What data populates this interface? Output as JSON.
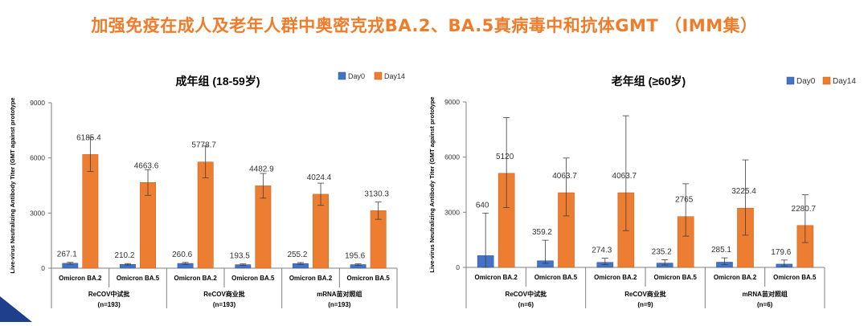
{
  "title": "加强免疫在成人及老年人群中奥密克戎BA.2、BA.5真病毒中和抗体GMT （IMM集）",
  "colors": {
    "day0": "#4472C4",
    "day14": "#ED7D31",
    "title": "#F07C2A"
  },
  "chart_data": [
    {
      "type": "bar",
      "title": "成年组 (18-59岁)",
      "ylabel": "Live-virus Neutralizing Antibody Titer (GMT against prototype",
      "ylim": [
        0,
        9000
      ],
      "yticks": [
        0,
        3000,
        6000,
        9000
      ],
      "legend_position": "top-right",
      "series_names": [
        "Day0",
        "Day14"
      ],
      "groups": [
        {
          "name": "ReCOV中试批",
          "n": "(n=193)",
          "categories": [
            "Omicron BA.2",
            "Omicron BA.5"
          ],
          "day0": [
            267.1,
            210.2
          ],
          "day14": [
            6185.4,
            4663.6
          ]
        },
        {
          "name": "ReCOV商业批",
          "n": "(n=193)",
          "categories": [
            "Omicron BA.2",
            "Omicron BA.5"
          ],
          "day0": [
            260.6,
            193.5
          ],
          "day14": [
            5778.7,
            4482.9
          ]
        },
        {
          "name": "mRNA苗对照组",
          "n": "(n=193)",
          "categories": [
            "Omicron BA.2",
            "Omicron BA.5"
          ],
          "day0": [
            255.2,
            195.6
          ],
          "day14": [
            4024.4,
            3130.3
          ]
        }
      ],
      "day0_labels": [
        "267.1",
        "210.2",
        "260.6",
        "193.5",
        "255.2",
        "195.6"
      ],
      "day14_labels": [
        "6185.4",
        "4663.6",
        "5778.7",
        "4482.9",
        "4024.4",
        "3130.3"
      ]
    },
    {
      "type": "bar",
      "title": "老年组 (≥60岁)",
      "ylabel": "Live-virus Neutralizing Antibody Titer (GMT against prototype",
      "ylim": [
        0,
        9000
      ],
      "yticks": [
        0,
        3000,
        6000,
        9000
      ],
      "legend_position": "top-right",
      "series_names": [
        "Day0",
        "Day14"
      ],
      "groups": [
        {
          "name": "ReCOV中试批",
          "n": "(n=6)",
          "categories": [
            "Omicron BA.2",
            "Omicron BA.5"
          ],
          "day0": [
            640,
            359.2
          ],
          "day14": [
            5120,
            4063.7
          ]
        },
        {
          "name": "ReCOV商业批",
          "n": "(n=9)",
          "categories": [
            "Omicron BA.2",
            "Omicron BA.5"
          ],
          "day0": [
            274.3,
            235.2
          ],
          "day14": [
            4063.7,
            2765
          ]
        },
        {
          "name": "mRNA苗对照组",
          "n": "(n=6)",
          "categories": [
            "Omicron BA.2",
            "Omicron BA.5"
          ],
          "day0": [
            285.1,
            179.6
          ],
          "day14": [
            3225.4,
            2280.7
          ]
        }
      ],
      "day0_labels": [
        "640",
        "359.2",
        "274.3",
        "235.2",
        "285.1",
        "179.6"
      ],
      "day14_labels": [
        "5120",
        "4063.7",
        "4063.7",
        "2765",
        "3225.4",
        "2280.7"
      ],
      "error_bars": {
        "day0": [
          [
            0,
            2950
          ],
          [
            220,
            1480
          ],
          [
            150,
            500
          ],
          [
            130,
            420
          ],
          [
            150,
            520
          ],
          [
            80,
            400
          ]
        ],
        "day14": [
          [
            3250,
            8150
          ],
          [
            2800,
            5950
          ],
          [
            2000,
            8250
          ],
          [
            1700,
            4550
          ],
          [
            1750,
            5850
          ],
          [
            1350,
            3950
          ]
        ]
      }
    }
  ]
}
